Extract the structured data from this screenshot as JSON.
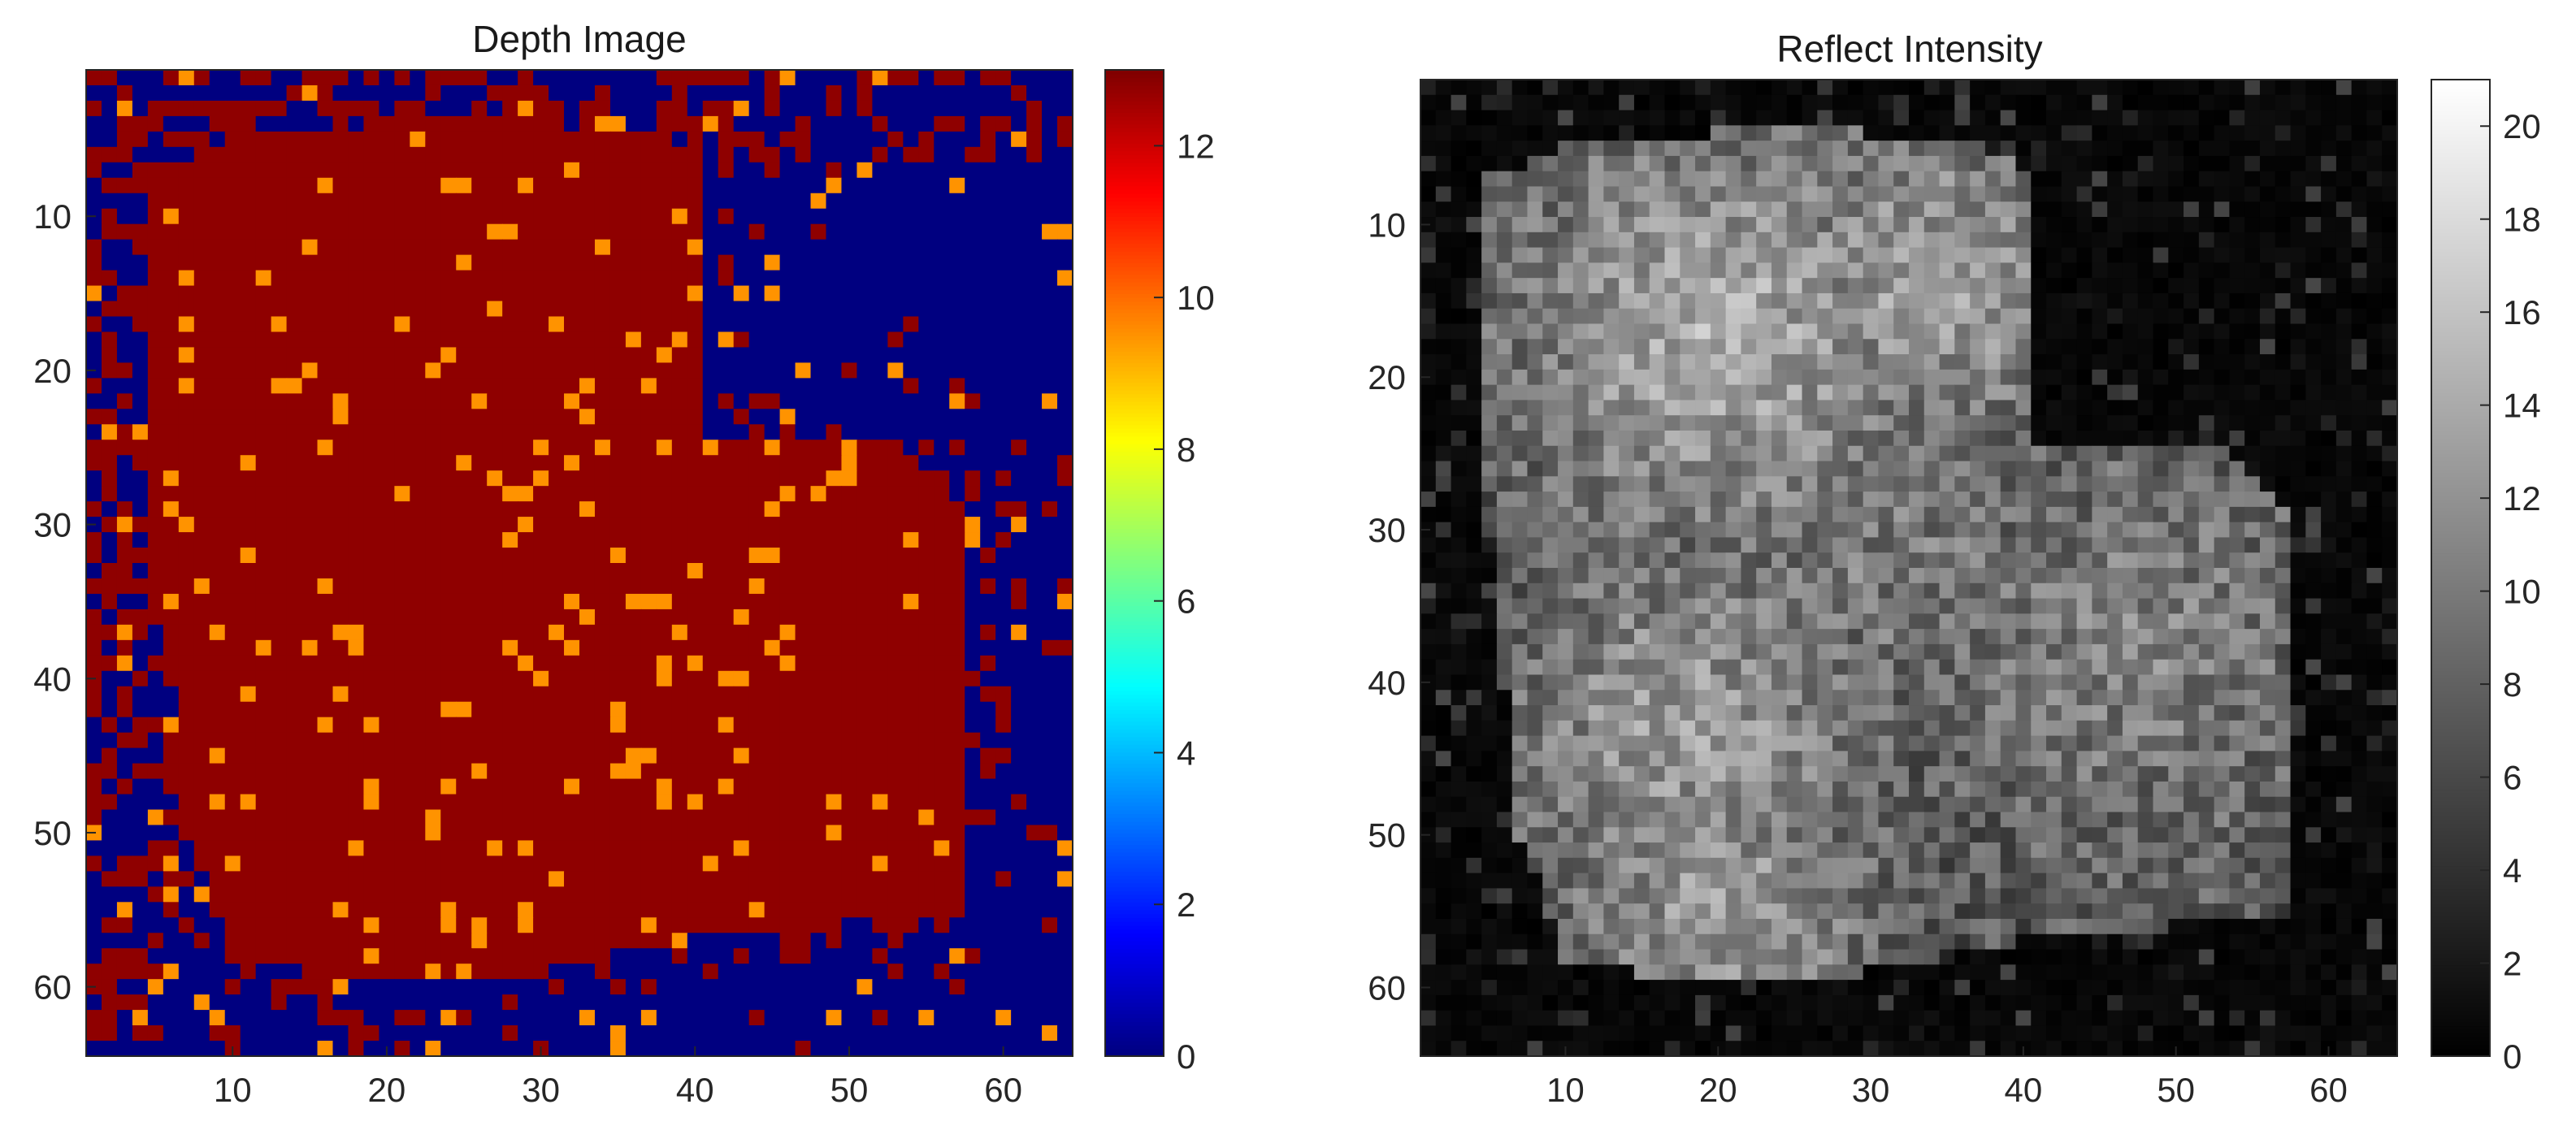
{
  "chart_data": [
    {
      "type": "heatmap",
      "title": "Depth Image",
      "colormap": "jet",
      "grid": false,
      "rows": 64,
      "cols": 64,
      "xlim": [
        0.5,
        64.5
      ],
      "ylim": [
        0.5,
        64.5
      ],
      "y_axis_reversed": true,
      "xticks": [
        10,
        20,
        30,
        40,
        50,
        60
      ],
      "xtick_labels": [
        "10",
        "20",
        "30",
        "40",
        "50",
        "60"
      ],
      "yticks": [
        10,
        20,
        30,
        40,
        50,
        60
      ],
      "ytick_labels": [
        "10",
        "20",
        "30",
        "40",
        "50",
        "60"
      ],
      "colorbar": {
        "range": [
          0,
          13
        ],
        "ticks": [
          0,
          2,
          4,
          6,
          8,
          10,
          12
        ],
        "tick_labels": [
          "0",
          "2",
          "4",
          "6",
          "8",
          "10",
          "12"
        ]
      },
      "value_summary": {
        "background_value": 0,
        "object_value": 12.8,
        "speckle_value": 9.5,
        "object_regions": [
          {
            "shape": "polygon",
            "points": [
              [
                5,
                7
              ],
              [
                10,
                5
              ],
              [
                20,
                4
              ],
              [
                30,
                4
              ],
              [
                38,
                5
              ],
              [
                41,
                7
              ],
              [
                41,
                25
              ],
              [
                54,
                25
              ],
              [
                58,
                29
              ],
              [
                58,
                55
              ],
              [
                50,
                56
              ],
              [
                40,
                57
              ],
              [
                30,
                59
              ],
              [
                20,
                60
              ],
              [
                10,
                58
              ],
              [
                7,
                50
              ],
              [
                5,
                30
              ]
            ]
          }
        ],
        "object_fill_fraction": 0.97,
        "object_speckle_fraction": 0.06,
        "background_object_noise_fraction": 0.2,
        "background_speckle_fraction": 0.04,
        "noise_band_width": 10,
        "noisy_background_rows": [
          1,
          6
        ],
        "noisy_background_cols": [
          1,
          6
        ]
      }
    },
    {
      "type": "heatmap",
      "title": "Reflect Intensity",
      "colormap": "gray",
      "grid": false,
      "rows": 64,
      "cols": 64,
      "xlim": [
        0.5,
        64.5
      ],
      "ylim": [
        0.5,
        64.5
      ],
      "y_axis_reversed": true,
      "xticks": [
        10,
        20,
        30,
        40,
        50,
        60
      ],
      "xtick_labels": [
        "10",
        "20",
        "30",
        "40",
        "50",
        "60"
      ],
      "yticks": [
        10,
        20,
        30,
        40,
        50,
        60
      ],
      "ytick_labels": [
        "10",
        "20",
        "30",
        "40",
        "50",
        "60"
      ],
      "colorbar": {
        "range": [
          0,
          21
        ],
        "ticks": [
          0,
          2,
          4,
          6,
          8,
          10,
          12,
          14,
          16,
          18,
          20
        ],
        "tick_labels": [
          "0",
          "2",
          "4",
          "6",
          "8",
          "10",
          "12",
          "14",
          "16",
          "18",
          "20"
        ]
      },
      "value_summary": {
        "background_value": 0.8,
        "bright_regions": [
          {
            "center_col": 20,
            "center_row": 17,
            "radius": 9,
            "peak": 14
          },
          {
            "center_col": 34,
            "center_row": 14,
            "radius": 7,
            "peak": 13
          },
          {
            "center_col": 18,
            "center_row": 43,
            "radius": 8,
            "peak": 12.5
          },
          {
            "center_col": 20,
            "center_row": 55,
            "radius": 7,
            "peak": 12.5
          },
          {
            "center_col": 47,
            "center_row": 38,
            "radius": 9,
            "peak": 10.5
          },
          {
            "center_col": 30,
            "center_row": 30,
            "radius": 9,
            "peak": 10
          }
        ],
        "object_base_value": 7,
        "object_noise_amplitude": 7,
        "background_noise_fraction": 0.12,
        "background_noise_peak": 6
      }
    }
  ]
}
